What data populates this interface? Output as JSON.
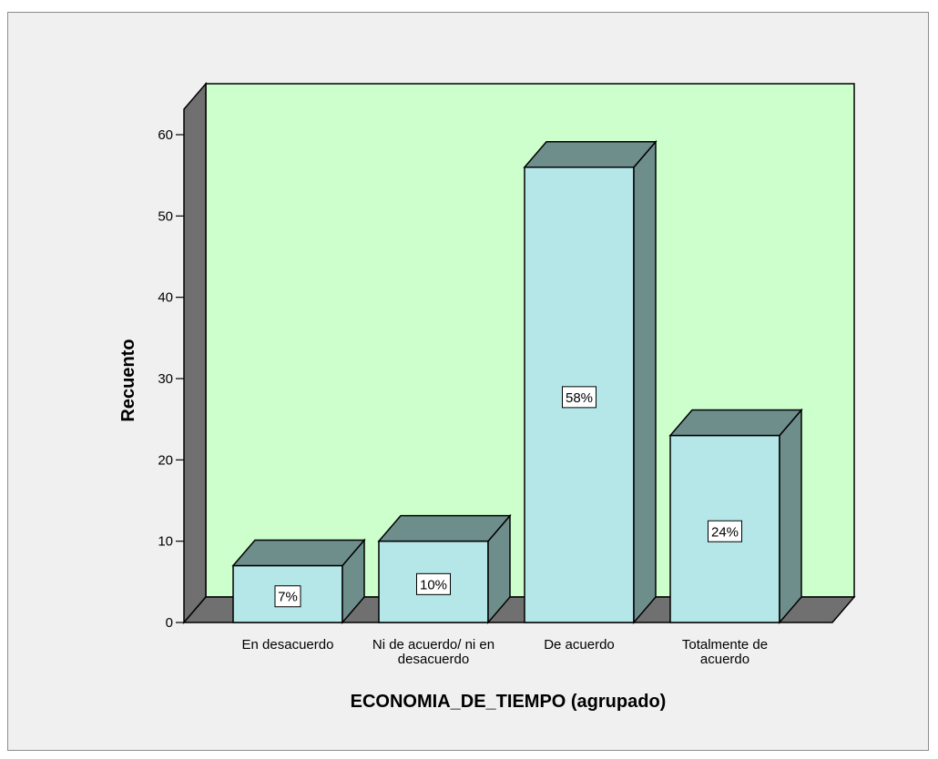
{
  "chart_data": {
    "type": "bar",
    "style": "3d",
    "categories": [
      [
        "En desacuerdo"
      ],
      [
        "Ni de acuerdo/ ni en",
        "desacuerdo"
      ],
      [
        "De acuerdo"
      ],
      [
        "Totalmente de",
        "acuerdo"
      ]
    ],
    "values": [
      7,
      10,
      56,
      23
    ],
    "data_labels": [
      "7%",
      "10%",
      "58%",
      "24%"
    ],
    "xlabel": "ECONOMIA_DE_TIEMPO (agrupado)",
    "ylabel": "Recuento",
    "ylim": [
      0,
      60
    ],
    "yticks": [
      "0",
      "10",
      "20",
      "30",
      "40",
      "50",
      "60"
    ],
    "grid": false,
    "colors": {
      "background": "#f0f0f0",
      "plot_wall": "#ccffcc",
      "side_wall": "#707070",
      "floor": "#707070",
      "bar_front": "#b5e6e8",
      "bar_top_side": "#6e8e8c",
      "outline": "#000000",
      "label_box": "#ffffff"
    }
  }
}
